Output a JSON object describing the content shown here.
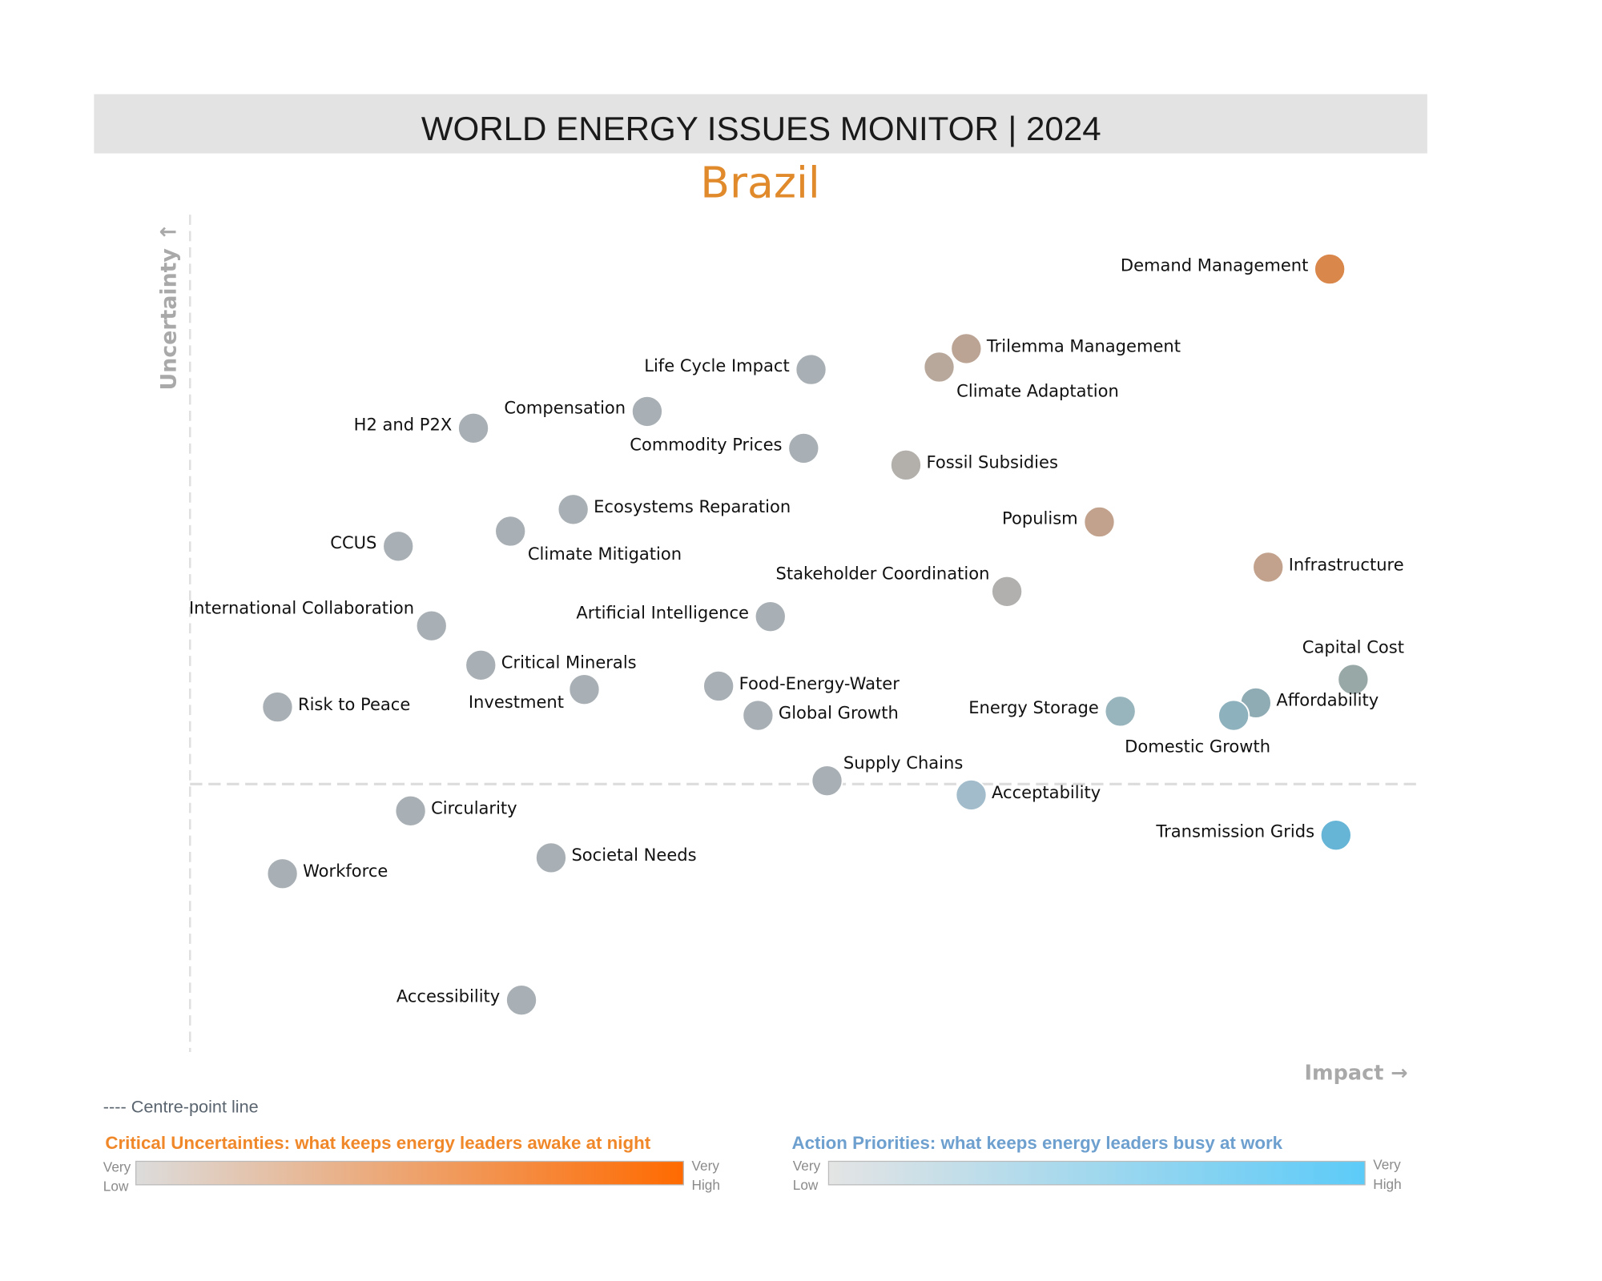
{
  "header": {
    "title": "WORLD ENERGY ISSUES MONITOR | 2024",
    "country": "Brazil"
  },
  "axes": {
    "y_label": "Uncertainty ↑",
    "x_label": "Impact →"
  },
  "legend": {
    "centre_line": "---- Centre-point line",
    "uncertainties": {
      "title": "Critical Uncertainties: what keeps energy leaders awake at night",
      "low_1": "Very",
      "low_2": "Low",
      "high_1": "Very",
      "high_2": "High",
      "color_low": "#dcdcdc",
      "color_high": "#ff6a00",
      "title_color": "#f0882a"
    },
    "priorities": {
      "title": "Action Priorities: what keeps energy leaders busy at work",
      "low_1": "Very",
      "low_2": "Low",
      "high_1": "Very",
      "high_2": "High",
      "color_low": "#e4e4e4",
      "color_high": "#5ccbf8",
      "title_color": "#6d9fcf"
    }
  },
  "chart_data": {
    "type": "scatter",
    "title": "WORLD ENERGY ISSUES MONITOR | 2024",
    "subtitle": "Brazil",
    "xlabel": "Impact",
    "ylabel": "Uncertainty",
    "xlim": [
      0,
      100
    ],
    "ylim": [
      0,
      100
    ],
    "centre_line_uncertainty": 32,
    "grid": false,
    "points": [
      {
        "name": "Demand Management",
        "impact": 92.5,
        "uncertainty": 93.5,
        "color": "#d9874b",
        "label": "left"
      },
      {
        "name": "Trilemma Management",
        "impact": 63.0,
        "uncertainty": 84.0,
        "color": "#bba494",
        "label": "right"
      },
      {
        "name": "Climate Adaptation",
        "impact": 60.8,
        "uncertainty": 81.8,
        "color": "#b8a89c",
        "label": "below-right"
      },
      {
        "name": "Life Cycle Impact",
        "impact": 50.4,
        "uncertainty": 81.5,
        "color": "#a9b0b5",
        "label": "left"
      },
      {
        "name": "Compensation",
        "impact": 37.1,
        "uncertainty": 76.5,
        "color": "#a9b0b5",
        "label": "left"
      },
      {
        "name": "H2 and P2X",
        "impact": 23.0,
        "uncertainty": 74.5,
        "color": "#a9b0b5",
        "label": "left"
      },
      {
        "name": "Commodity Prices",
        "impact": 49.8,
        "uncertainty": 72.1,
        "color": "#a9b0b5",
        "label": "left"
      },
      {
        "name": "Fossil Subsidies",
        "impact": 58.1,
        "uncertainty": 70.1,
        "color": "#b3afab",
        "label": "right"
      },
      {
        "name": "Ecosystems Reparation",
        "impact": 31.1,
        "uncertainty": 64.8,
        "color": "#a9b0b5",
        "label": "right"
      },
      {
        "name": "Climate Mitigation",
        "impact": 26.0,
        "uncertainty": 62.2,
        "color": "#a9b0b5",
        "label": "below-right"
      },
      {
        "name": "CCUS",
        "impact": 16.9,
        "uncertainty": 60.4,
        "color": "#a9b0b5",
        "label": "left"
      },
      {
        "name": "Populism",
        "impact": 73.8,
        "uncertainty": 63.3,
        "color": "#c2a28c",
        "label": "left"
      },
      {
        "name": "Infrastructure",
        "impact": 87.5,
        "uncertainty": 57.9,
        "color": "#c2a28c",
        "label": "right"
      },
      {
        "name": "Stakeholder Coordination",
        "impact": 66.3,
        "uncertainty": 55.0,
        "color": "#b1b0ae",
        "label": "above-left"
      },
      {
        "name": "Artificial Intelligence",
        "impact": 47.1,
        "uncertainty": 52.0,
        "color": "#a9b0b5",
        "label": "left"
      },
      {
        "name": "International Collaboration",
        "impact": 19.6,
        "uncertainty": 50.9,
        "color": "#a9b0b5",
        "label": "above-left"
      },
      {
        "name": "Critical Minerals",
        "impact": 23.6,
        "uncertainty": 46.2,
        "color": "#a9b0b5",
        "label": "right"
      },
      {
        "name": "Investment",
        "impact": 32.0,
        "uncertainty": 43.3,
        "color": "#a9b0b5",
        "label": "below-left"
      },
      {
        "name": "Food-Energy-Water",
        "impact": 42.9,
        "uncertainty": 43.7,
        "color": "#a9b0b5",
        "label": "right"
      },
      {
        "name": "Global Growth",
        "impact": 46.1,
        "uncertainty": 40.2,
        "color": "#a9b0b5",
        "label": "right"
      },
      {
        "name": "Risk to Peace",
        "impact": 7.1,
        "uncertainty": 41.2,
        "color": "#a9b0b5",
        "label": "right"
      },
      {
        "name": "Energy Storage",
        "impact": 75.5,
        "uncertainty": 40.7,
        "color": "#98b4bc",
        "label": "left"
      },
      {
        "name": "Capital Cost",
        "impact": 94.4,
        "uncertainty": 44.5,
        "color": "#98a8a6",
        "label": "above"
      },
      {
        "name": "Affordability",
        "impact": 86.5,
        "uncertainty": 41.7,
        "color": "#8fabb3",
        "label": "right"
      },
      {
        "name": "Domestic Growth",
        "impact": 84.7,
        "uncertainty": 40.2,
        "color": "#8eb1be",
        "label": "below-left"
      },
      {
        "name": "Supply Chains",
        "impact": 51.7,
        "uncertainty": 32.4,
        "color": "#a9b0b5",
        "label": "above-right"
      },
      {
        "name": "Acceptability",
        "impact": 63.4,
        "uncertainty": 30.7,
        "color": "#a2bccb",
        "label": "right"
      },
      {
        "name": "Transmission Grids",
        "impact": 93.0,
        "uncertainty": 25.9,
        "color": "#66b5d6",
        "label": "left"
      },
      {
        "name": "Circularity",
        "impact": 17.9,
        "uncertainty": 28.8,
        "color": "#a9b0b5",
        "label": "right"
      },
      {
        "name": "Societal Needs",
        "impact": 29.3,
        "uncertainty": 23.2,
        "color": "#a9b0b5",
        "label": "right"
      },
      {
        "name": "Workforce",
        "impact": 7.5,
        "uncertainty": 21.3,
        "color": "#a9b0b5",
        "label": "right"
      },
      {
        "name": "Accessibility",
        "impact": 26.9,
        "uncertainty": 6.2,
        "color": "#a9b0b5",
        "label": "left"
      }
    ]
  }
}
